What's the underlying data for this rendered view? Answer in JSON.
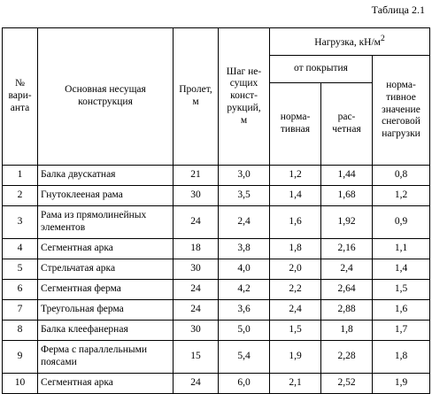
{
  "caption": "Таблица 2.1",
  "headers": {
    "variant": [
      "№",
      "вари-",
      "анта"
    ],
    "structure": [
      "Основная несущая",
      "конструкция"
    ],
    "span": [
      "Пролет,",
      "м"
    ],
    "step": [
      "Шаг не-",
      "сущих",
      "конст-",
      "рукций,",
      "м"
    ],
    "load": "Нагрузка, кН/м",
    "load_sup": "2",
    "roof": "от покрытия",
    "normative": [
      "норма-",
      "тивная"
    ],
    "design": [
      "рас-",
      "четная"
    ],
    "snow": [
      "норма-",
      "тивное",
      "значение",
      "снеговой",
      "нагрузки"
    ]
  },
  "rows": [
    {
      "n": "1",
      "name": "Балка двускатная",
      "span": "21",
      "step": "3,0",
      "normative": "1,2",
      "design": "1,44",
      "snow": "0,8",
      "tall": false
    },
    {
      "n": "2",
      "name": "Гнутоклееная рама",
      "span": "30",
      "step": "3,5",
      "normative": "1,4",
      "design": "1,68",
      "snow": "1,2",
      "tall": false
    },
    {
      "n": "3",
      "name": "Рама из прямолинейных элементов",
      "span": "24",
      "step": "2,4",
      "normative": "1,6",
      "design": "1,92",
      "snow": "0,9",
      "tall": true
    },
    {
      "n": "4",
      "name": "Сегментная арка",
      "span": "18",
      "step": "3,8",
      "normative": "1,8",
      "design": "2,16",
      "snow": "1,1",
      "tall": false
    },
    {
      "n": "5",
      "name": "Стрельчатая арка",
      "span": "30",
      "step": "4,0",
      "normative": "2,0",
      "design": "2,4",
      "snow": "1,4",
      "tall": false
    },
    {
      "n": "6",
      "name": "Сегментная ферма",
      "span": "24",
      "step": "4,2",
      "normative": "2,2",
      "design": "2,64",
      "snow": "1,5",
      "tall": false
    },
    {
      "n": "7",
      "name": "Треугольная ферма",
      "span": "24",
      "step": "3,6",
      "normative": "2,4",
      "design": "2,88",
      "snow": "1,6",
      "tall": false
    },
    {
      "n": "8",
      "name": "Балка клеефанерная",
      "span": "30",
      "step": "5,0",
      "normative": "1,5",
      "design": "1,8",
      "snow": "1,7",
      "tall": false
    },
    {
      "n": "9",
      "name": "Ферма с параллельными поясами",
      "span": "15",
      "step": "5,4",
      "normative": "1,9",
      "design": "2,28",
      "snow": "1,8",
      "tall": true
    },
    {
      "n": "10",
      "name": "Сегментная арка",
      "span": "24",
      "step": "6,0",
      "normative": "2,1",
      "design": "2,52",
      "snow": "1,9",
      "tall": false
    }
  ]
}
